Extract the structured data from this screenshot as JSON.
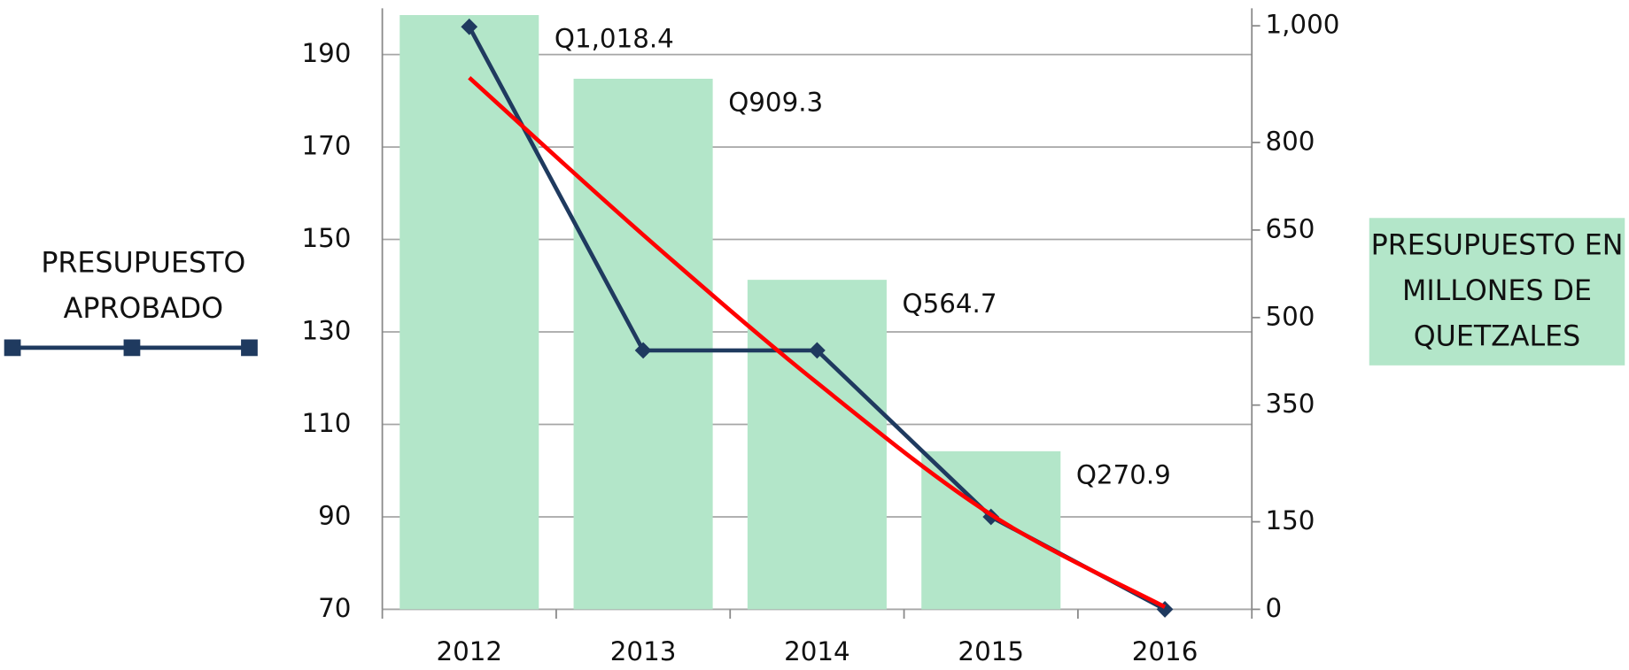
{
  "chart_data": {
    "type": "bar-line",
    "categories": [
      "2012",
      "2013",
      "2014",
      "2015",
      "2016"
    ],
    "series": [
      {
        "name": "PRESUPUESTO EN MILLONES DE QUETZALES",
        "type": "bar",
        "axis": "y2",
        "color": "#b3e6c9",
        "values": [
          1018.4,
          909.3,
          564.7,
          270.9,
          null
        ],
        "value_labels": [
          "Q1,018.4",
          "Q909.3",
          "Q564.7",
          "Q270.9",
          null
        ]
      },
      {
        "name": "PRESUPUESTO APROBADO",
        "type": "line",
        "color": "#1f3a5f",
        "values": [
          196,
          126,
          126,
          90,
          70
        ]
      },
      {
        "type": "trend",
        "color": "#ff0000",
        "values": [
          185,
          151,
          119,
          90.5,
          70.5
        ]
      }
    ],
    "ylim": [
      70,
      200
    ],
    "yticks": [
      70,
      90,
      110,
      130,
      150,
      170,
      190
    ],
    "y2lim": [
      0,
      1030
    ],
    "y2ticks": [
      0,
      150,
      350,
      500,
      650,
      800,
      {
        "value": 1000,
        "label": "1,000"
      }
    ],
    "grid": true
  }
}
